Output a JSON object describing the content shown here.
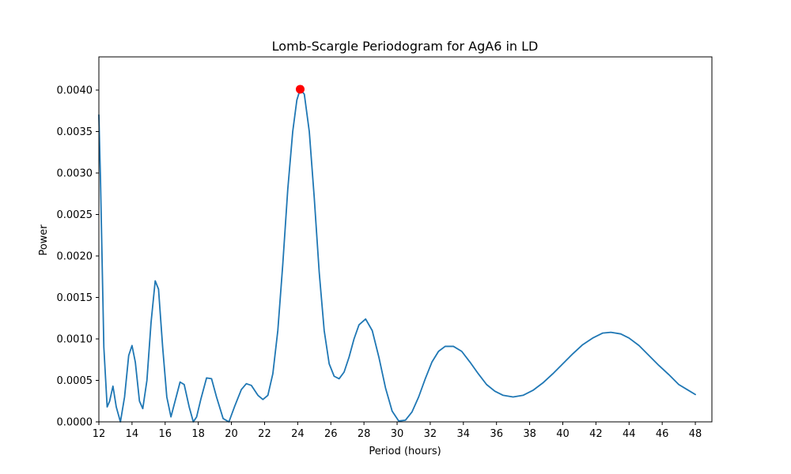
{
  "chart_data": {
    "type": "line",
    "title": "Lomb-Scargle Periodogram for AgA6 in LD",
    "xlabel": "Period (hours)",
    "ylabel": "Power",
    "xlim": [
      12,
      49
    ],
    "ylim": [
      0,
      0.0044
    ],
    "x_ticks": [
      12,
      14,
      16,
      18,
      20,
      22,
      24,
      26,
      28,
      30,
      32,
      34,
      36,
      38,
      40,
      42,
      44,
      46,
      48
    ],
    "y_ticks": [
      0.0,
      0.0005,
      0.001,
      0.0015,
      0.002,
      0.0025,
      0.003,
      0.0035,
      0.004
    ],
    "y_tick_labels": [
      "0.0000",
      "0.0005",
      "0.0010",
      "0.0015",
      "0.0020",
      "0.0025",
      "0.0030",
      "0.0035",
      "0.0040"
    ],
    "grid": false,
    "series": [
      {
        "color": "#1f77b4",
        "x": [
          12.0,
          12.1,
          12.3,
          12.5,
          12.65,
          12.85,
          13.05,
          13.3,
          13.55,
          13.8,
          14.0,
          14.2,
          14.45,
          14.65,
          14.9,
          15.15,
          15.4,
          15.6,
          15.85,
          16.1,
          16.35,
          16.6,
          16.9,
          17.15,
          17.45,
          17.7,
          17.9,
          18.15,
          18.5,
          18.8,
          19.1,
          19.5,
          19.85,
          20.2,
          20.6,
          20.9,
          21.2,
          21.6,
          21.9,
          22.2,
          22.5,
          22.8,
          23.1,
          23.4,
          23.7,
          23.95,
          24.15,
          24.4,
          24.7,
          25.0,
          25.3,
          25.6,
          25.9,
          26.2,
          26.5,
          26.8,
          27.1,
          27.4,
          27.7,
          28.1,
          28.5,
          28.9,
          29.3,
          29.7,
          30.1,
          30.5,
          30.9,
          31.3,
          31.7,
          32.1,
          32.5,
          32.9,
          33.4,
          33.9,
          34.4,
          34.9,
          35.4,
          35.9,
          36.4,
          37.0,
          37.6,
          38.2,
          38.8,
          39.4,
          40.0,
          40.6,
          41.2,
          41.8,
          42.4,
          42.9,
          43.5,
          44.0,
          44.6,
          45.2,
          45.8,
          46.4,
          47.0,
          47.5,
          48.0
        ],
        "y": [
          0.0037,
          0.0029,
          0.0009,
          0.00018,
          0.00025,
          0.00043,
          0.00018,
          0.0,
          0.0003,
          0.0008,
          0.00092,
          0.00072,
          0.00025,
          0.00016,
          0.0005,
          0.0012,
          0.0017,
          0.0016,
          0.0009,
          0.0003,
          6e-05,
          0.00025,
          0.00048,
          0.00045,
          0.00018,
          0.0,
          6e-05,
          0.00027,
          0.00053,
          0.00052,
          0.0003,
          4e-05,
          0.0,
          0.00019,
          0.00039,
          0.00046,
          0.00044,
          0.00032,
          0.00027,
          0.00032,
          0.00058,
          0.0011,
          0.0019,
          0.0028,
          0.0035,
          0.00388,
          0.00401,
          0.00395,
          0.0035,
          0.0027,
          0.0018,
          0.0011,
          0.0007,
          0.00055,
          0.00052,
          0.0006,
          0.00078,
          0.001,
          0.00117,
          0.00124,
          0.0011,
          0.00078,
          0.00041,
          0.00013,
          1e-05,
          2e-05,
          0.00012,
          0.0003,
          0.00052,
          0.00072,
          0.00085,
          0.00091,
          0.00091,
          0.00085,
          0.00072,
          0.00058,
          0.00045,
          0.00037,
          0.00032,
          0.0003,
          0.00032,
          0.00038,
          0.00047,
          0.00058,
          0.0007,
          0.00082,
          0.00093,
          0.00101,
          0.00107,
          0.00108,
          0.00106,
          0.00101,
          0.00092,
          0.0008,
          0.00068,
          0.00057,
          0.00045,
          0.00039,
          0.00033
        ]
      }
    ],
    "peak": {
      "x": 24.15,
      "y": 0.00401,
      "color": "#ff0000"
    }
  }
}
